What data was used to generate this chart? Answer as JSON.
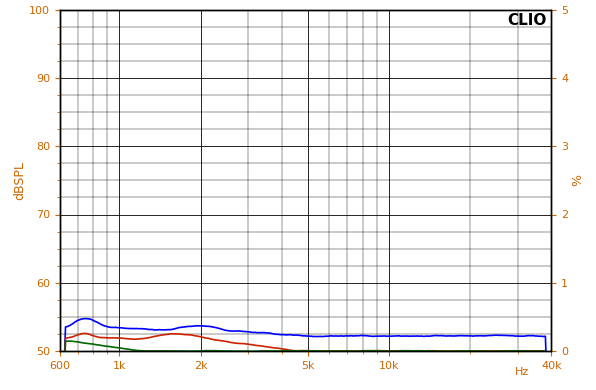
{
  "title": "CLIO",
  "ylabel_left": "dBSPL",
  "ylabel_right": "%",
  "xlabel_right": "Hz",
  "xlabel_far_right": "40k",
  "xlim": [
    600,
    40000
  ],
  "ylim_left": [
    50,
    100
  ],
  "ylim_right": [
    0,
    5
  ],
  "yticks_left": [
    50,
    60,
    70,
    80,
    90,
    100
  ],
  "yticks_right": [
    0,
    1,
    2,
    3,
    4,
    5
  ],
  "xtick_positions": [
    600,
    1000,
    2000,
    5000,
    10000,
    40000
  ],
  "xtick_labels": [
    "600",
    "1k",
    "2k",
    "5k",
    "10k",
    "40k"
  ],
  "bg_color": "#ffffff",
  "grid_color": "#000000",
  "tick_color": "#cc6600",
  "label_color": "#cc6600",
  "line_blue_color": "#0000ff",
  "line_red_color": "#cc2200",
  "line_green_color": "#006600",
  "figsize": [
    5.96,
    3.9
  ],
  "dpi": 100
}
